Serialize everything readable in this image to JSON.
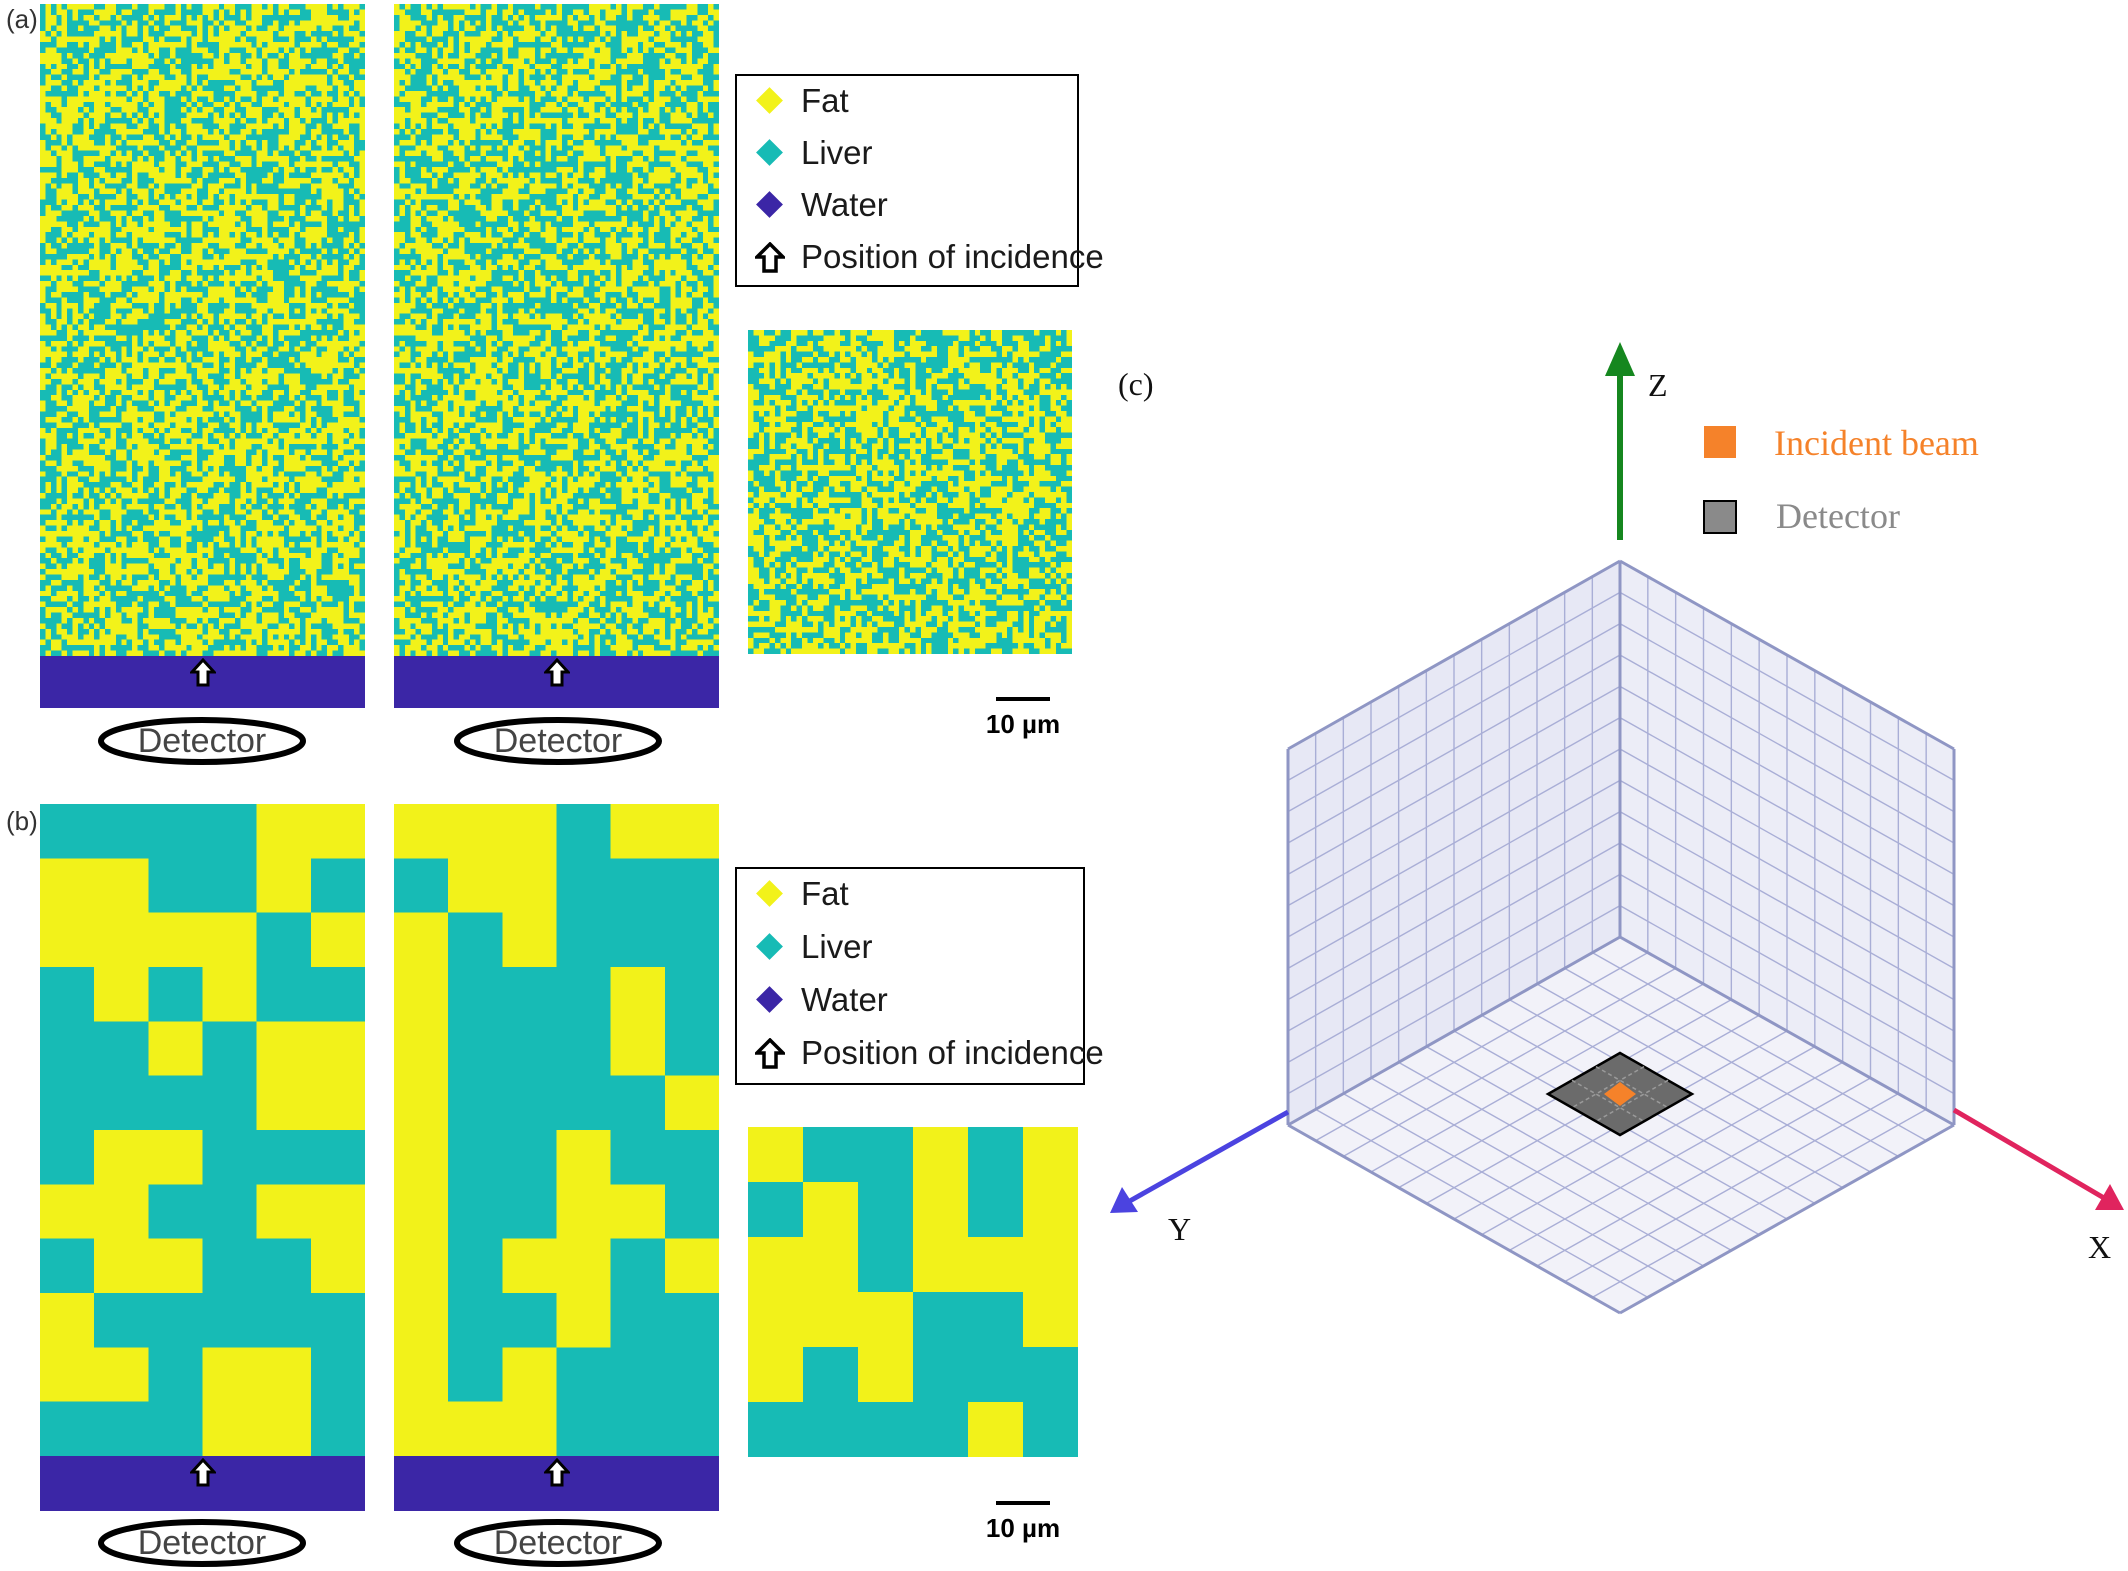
{
  "panels": {
    "a": {
      "label": "(a)"
    },
    "b": {
      "label": "(b)"
    },
    "c": {
      "label": "(c)"
    }
  },
  "legend": {
    "items": [
      {
        "label": "Fat",
        "color": "#f2f21a",
        "symbol": "diamond"
      },
      {
        "label": "Liver",
        "color": "#17bbb5",
        "symbol": "diamond"
      },
      {
        "label": "Water",
        "color": "#3b26a6",
        "symbol": "diamond"
      },
      {
        "label": "Position of incidence",
        "symbol": "up-arrow-icon"
      }
    ]
  },
  "materials": {
    "fat": "#f2f21a",
    "liver": "#17bbb5",
    "water": "#3b26a6"
  },
  "detector_label": "Detector",
  "scale_bar": {
    "label": "10 µm"
  },
  "panel_c": {
    "axes": {
      "z": "Z",
      "y": "Y",
      "x": "X"
    },
    "axis_colors": {
      "z": "#15871f",
      "y": "#4b43e0",
      "x": "#e0245e"
    },
    "legend": [
      {
        "label": "Incident beam",
        "color": "#f5822a"
      },
      {
        "label": "Detector",
        "color": "#8a8a8a"
      }
    ],
    "grid_divisions": 12
  }
}
